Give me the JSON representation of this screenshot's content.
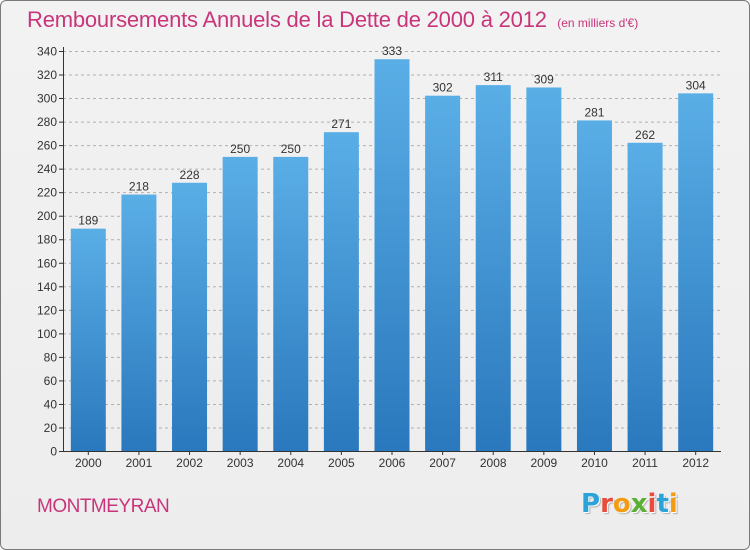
{
  "chart_data": {
    "type": "bar",
    "title": "Remboursements Annuels de la Dette de 2000 à 2012",
    "subtitle": "(en milliers d'€)",
    "categories": [
      "2000",
      "2001",
      "2002",
      "2003",
      "2004",
      "2005",
      "2006",
      "2007",
      "2008",
      "2009",
      "2010",
      "2011",
      "2012"
    ],
    "values": [
      189,
      218,
      228,
      250,
      250,
      271,
      333,
      302,
      311,
      309,
      281,
      262,
      304
    ],
    "ylim": [
      0,
      340
    ],
    "yticks": [
      0,
      20,
      40,
      60,
      80,
      100,
      120,
      140,
      160,
      180,
      200,
      220,
      240,
      260,
      280,
      300,
      320,
      340
    ],
    "grid": true,
    "legend": "none"
  },
  "location": "MONTMEYRAN",
  "logo": {
    "letters": [
      "P",
      "r",
      "o",
      "x",
      "i",
      "t",
      "i"
    ],
    "colors": [
      "#2aa3d8",
      "#e84c3d",
      "#f39c12",
      "#5bb034",
      "#e84c3d",
      "#2aa3d8",
      "#f39c12"
    ]
  },
  "colors": {
    "accent": "#c8357a",
    "bar_top": "#5aaee6",
    "bar_bottom": "#2a78bd",
    "axis": "#333333",
    "grid": "#b0b0b0"
  }
}
